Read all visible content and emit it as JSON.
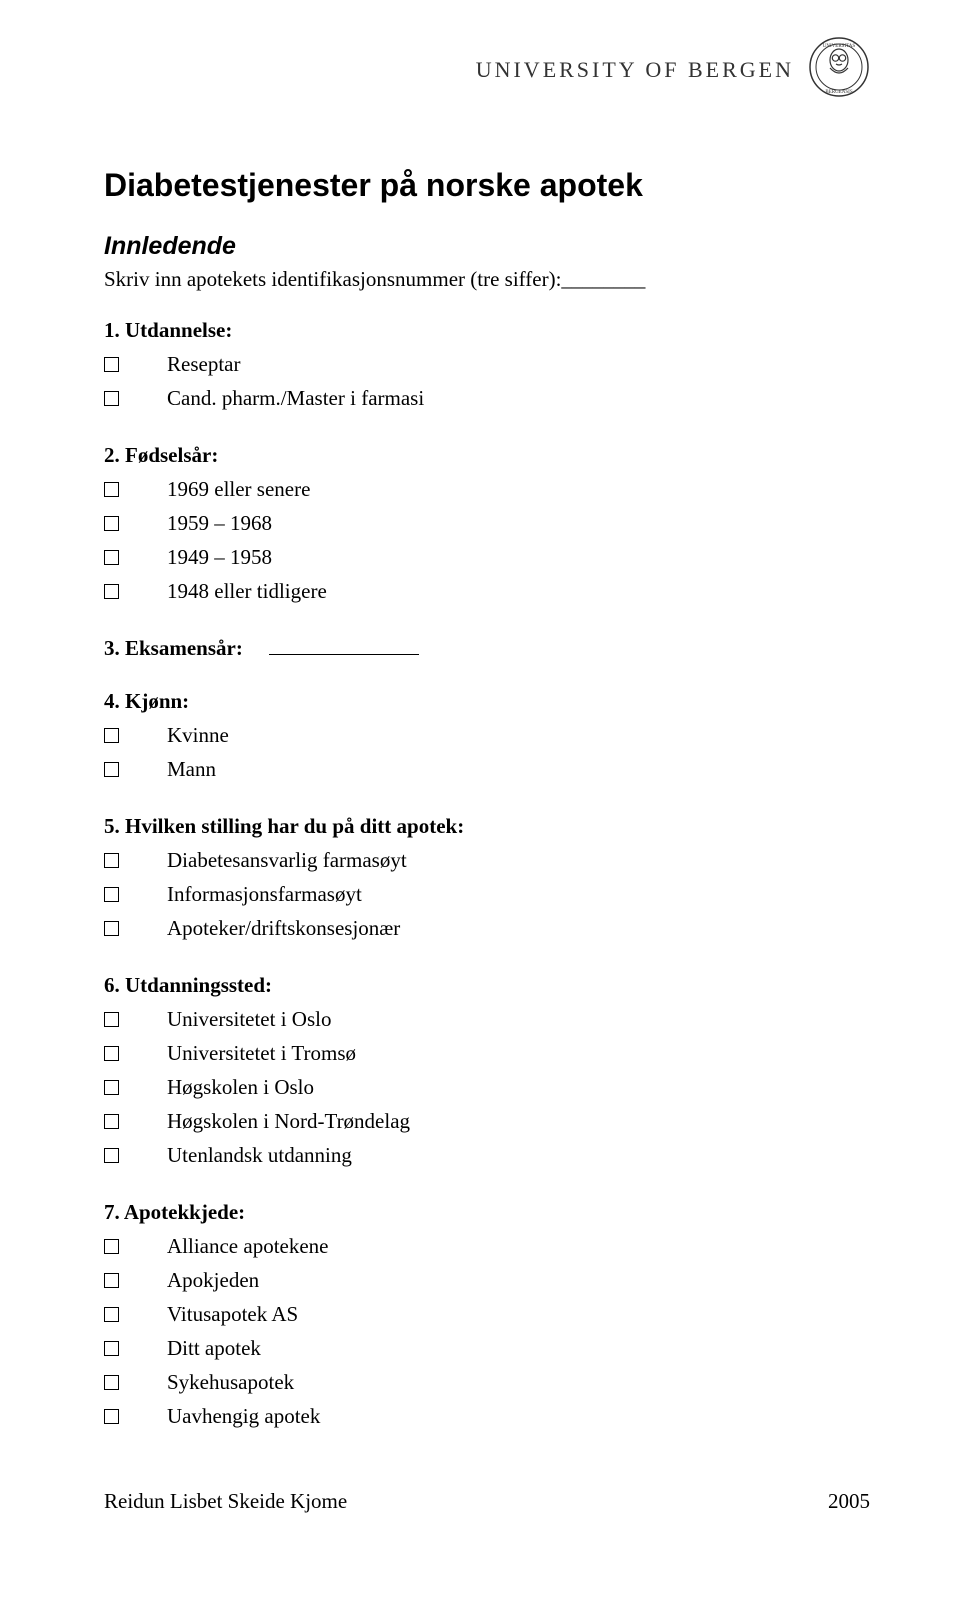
{
  "header": {
    "institution": "UNIVERSITY OF BERGEN"
  },
  "title": "Diabetestjenester på norske apotek",
  "section_heading": "Innledende",
  "instruction": "Skriv inn apotekets identifikasjonsnummer (tre siffer):________",
  "questions": [
    {
      "title": "1. Utdannelse:",
      "options": [
        "Reseptar",
        "Cand. pharm./Master i farmasi"
      ]
    },
    {
      "title": "2. Fødselsår:",
      "options": [
        "1969 eller senere",
        "1959 – 1968",
        "1949 – 1958",
        "1948 eller tidligere"
      ]
    },
    {
      "title": "3. Eksamensår:",
      "inline_blank": true
    },
    {
      "title": "4. Kjønn:",
      "options": [
        "Kvinne",
        "Mann"
      ]
    },
    {
      "title": "5. Hvilken stilling har du på ditt apotek:",
      "options": [
        "Diabetesansvarlig farmasøyt",
        "Informasjonsfarmasøyt",
        "Apoteker/driftskonsesjonær"
      ]
    },
    {
      "title": "6. Utdanningssted:",
      "options": [
        "Universitetet i Oslo",
        "Universitetet i Tromsø",
        "Høgskolen i Oslo",
        "Høgskolen i Nord-Trøndelag",
        "Utenlandsk utdanning"
      ]
    },
    {
      "title": "7. Apotekkjede:",
      "options": [
        "Alliance apotekene",
        "Apokjeden",
        "Vitusapotek AS",
        "Ditt apotek",
        "Sykehusapotek",
        "Uavhengig apotek"
      ]
    }
  ],
  "footer": {
    "author": "Reidun Lisbet Skeide Kjome",
    "year": "2005"
  },
  "colors": {
    "text": "#000000",
    "background": "#ffffff",
    "header_text": "#333333"
  }
}
